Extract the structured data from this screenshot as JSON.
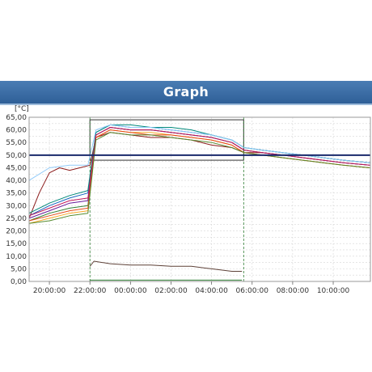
{
  "header": {
    "title": "Graph"
  },
  "chart_data": {
    "type": "line",
    "title": "",
    "unit_label": "[°C]",
    "xlabel": "",
    "ylabel": "",
    "ylim": [
      0,
      65
    ],
    "y_ticks": [
      "0,00",
      "2,50",
      "5,00",
      "7,50",
      "10,00",
      "12,50",
      "15,00",
      "17,50",
      "20,00",
      "22,50",
      "25,00",
      "27,50",
      "30,00",
      "32,50",
      "35,00",
      "37,50",
      "40,00",
      "42,50",
      "45,00",
      "47,50",
      "50,00",
      "52,50",
      "55,00",
      "57,50",
      "60,00",
      "62,50",
      "65,00"
    ],
    "x_time_range": [
      "19:00",
      "11:50"
    ],
    "x_ticks": [
      "20:00:00",
      "22:00:00",
      "00:00:00",
      "02:00:00",
      "04:00:00",
      "06:00:00",
      "08:00:00",
      "10:00:00"
    ],
    "grid": true,
    "reference_line": {
      "value": 50,
      "color": "#1a2a6c"
    },
    "time_markers": [
      "22:00",
      "05:35"
    ],
    "hold_window": {
      "start": "22:00",
      "end": "05:35",
      "ymin": 48,
      "ymax": 64,
      "color": "#333333"
    },
    "series": [
      {
        "color": "#8b1a1a",
        "values": [
          [
            19.0,
            25
          ],
          [
            19.5,
            35
          ],
          [
            20.0,
            43
          ],
          [
            20.5,
            45
          ],
          [
            21.0,
            44
          ],
          [
            21.5,
            45
          ],
          [
            22.0,
            46
          ],
          [
            22.3,
            57
          ],
          [
            23.0,
            59
          ],
          [
            0.0,
            58
          ],
          [
            1.0,
            57
          ],
          [
            2.0,
            57
          ],
          [
            3.0,
            56
          ],
          [
            4.0,
            54
          ],
          [
            5.0,
            53
          ],
          [
            5.6,
            51
          ],
          [
            6.5,
            51
          ],
          [
            7.5,
            50
          ],
          [
            8.5,
            50
          ],
          [
            9.5,
            49
          ],
          [
            10.5,
            48
          ],
          [
            11.8,
            47
          ]
        ]
      },
      {
        "color": "#2e7d32",
        "values": [
          [
            19.0,
            24
          ],
          [
            20.0,
            27
          ],
          [
            21.0,
            29
          ],
          [
            21.9,
            30
          ],
          [
            22.3,
            58
          ],
          [
            23.0,
            61
          ],
          [
            0.0,
            60
          ],
          [
            1.0,
            60
          ],
          [
            2.0,
            59
          ],
          [
            3.0,
            58
          ],
          [
            4.0,
            57
          ],
          [
            5.0,
            55
          ],
          [
            5.6,
            52
          ],
          [
            6.5,
            51
          ],
          [
            7.5,
            50
          ],
          [
            8.5,
            49
          ],
          [
            9.5,
            48
          ],
          [
            10.5,
            47
          ],
          [
            11.8,
            46
          ]
        ]
      },
      {
        "color": "#1565c0",
        "values": [
          [
            19.0,
            26
          ],
          [
            20.0,
            30
          ],
          [
            21.0,
            33
          ],
          [
            21.9,
            35
          ],
          [
            22.3,
            59
          ],
          [
            23.0,
            62
          ],
          [
            0.0,
            61
          ],
          [
            1.0,
            61
          ],
          [
            2.0,
            60
          ],
          [
            3.0,
            59
          ],
          [
            4.0,
            58
          ],
          [
            5.0,
            56
          ],
          [
            5.6,
            53
          ],
          [
            6.5,
            52
          ],
          [
            7.5,
            51
          ],
          [
            8.5,
            50
          ],
          [
            9.5,
            49
          ],
          [
            10.5,
            48
          ],
          [
            11.8,
            47
          ]
        ]
      },
      {
        "color": "#f9a825",
        "values": [
          [
            19.0,
            23
          ],
          [
            20.0,
            25
          ],
          [
            21.0,
            27
          ],
          [
            21.9,
            28
          ],
          [
            22.3,
            57
          ],
          [
            23.0,
            60
          ],
          [
            0.0,
            59
          ],
          [
            1.0,
            59
          ],
          [
            2.0,
            58
          ],
          [
            3.0,
            57
          ],
          [
            4.0,
            56
          ],
          [
            5.0,
            54
          ],
          [
            5.6,
            51
          ],
          [
            6.5,
            50
          ],
          [
            7.5,
            49
          ],
          [
            8.5,
            48
          ],
          [
            9.5,
            47
          ],
          [
            10.5,
            46
          ],
          [
            11.8,
            45
          ]
        ]
      },
      {
        "color": "#6a1b9a",
        "values": [
          [
            19.0,
            25
          ],
          [
            20.0,
            28
          ],
          [
            21.0,
            31
          ],
          [
            21.9,
            32
          ],
          [
            22.3,
            58
          ],
          [
            23.0,
            61
          ],
          [
            0.0,
            60
          ],
          [
            1.0,
            60
          ],
          [
            2.0,
            59
          ],
          [
            3.0,
            58
          ],
          [
            4.0,
            57
          ],
          [
            5.0,
            55
          ],
          [
            5.6,
            52
          ],
          [
            6.5,
            51
          ],
          [
            7.5,
            50
          ],
          [
            8.5,
            49
          ],
          [
            9.5,
            48
          ],
          [
            10.5,
            47
          ],
          [
            11.8,
            46
          ]
        ]
      },
      {
        "color": "#00897b",
        "values": [
          [
            19.0,
            27
          ],
          [
            20.0,
            31
          ],
          [
            21.0,
            34
          ],
          [
            21.9,
            36
          ],
          [
            22.3,
            59
          ],
          [
            23.0,
            62
          ],
          [
            0.0,
            62
          ],
          [
            1.0,
            61
          ],
          [
            2.0,
            61
          ],
          [
            3.0,
            60
          ],
          [
            4.0,
            58
          ],
          [
            5.0,
            56
          ],
          [
            5.6,
            53
          ],
          [
            6.5,
            52
          ],
          [
            7.5,
            51
          ],
          [
            8.5,
            50
          ],
          [
            9.5,
            49
          ],
          [
            10.5,
            48
          ],
          [
            11.8,
            47
          ]
        ]
      },
      {
        "color": "#e64a19",
        "values": [
          [
            19.0,
            24
          ],
          [
            20.0,
            26
          ],
          [
            21.0,
            28
          ],
          [
            21.9,
            29
          ],
          [
            22.3,
            57
          ],
          [
            23.0,
            60
          ],
          [
            0.0,
            59
          ],
          [
            1.0,
            58
          ],
          [
            2.0,
            58
          ],
          [
            3.0,
            57
          ],
          [
            4.0,
            56
          ],
          [
            5.0,
            54
          ],
          [
            5.6,
            51
          ],
          [
            6.5,
            50
          ],
          [
            7.5,
            49
          ],
          [
            8.5,
            48
          ],
          [
            9.5,
            47
          ],
          [
            10.5,
            46
          ],
          [
            11.8,
            45
          ]
        ]
      },
      {
        "color": "#90caf9",
        "values": [
          [
            19.0,
            40
          ],
          [
            20.0,
            45
          ],
          [
            21.0,
            46
          ],
          [
            21.9,
            46
          ],
          [
            22.3,
            60
          ],
          [
            23.0,
            62
          ],
          [
            0.0,
            61
          ],
          [
            1.0,
            61
          ],
          [
            2.0,
            60
          ],
          [
            3.0,
            59
          ],
          [
            4.0,
            58
          ],
          [
            5.0,
            56
          ],
          [
            5.6,
            53
          ],
          [
            6.5,
            52
          ],
          [
            7.5,
            51
          ],
          [
            8.5,
            50
          ],
          [
            9.5,
            49
          ],
          [
            10.5,
            48
          ],
          [
            11.8,
            47
          ]
        ]
      },
      {
        "color": "#c2185b",
        "values": [
          [
            19.0,
            26
          ],
          [
            20.0,
            29
          ],
          [
            21.0,
            32
          ],
          [
            21.9,
            33
          ],
          [
            22.3,
            58
          ],
          [
            23.0,
            61
          ],
          [
            0.0,
            60
          ],
          [
            1.0,
            60
          ],
          [
            2.0,
            59
          ],
          [
            3.0,
            58
          ],
          [
            4.0,
            57
          ],
          [
            5.0,
            55
          ],
          [
            5.6,
            52
          ],
          [
            6.5,
            51
          ],
          [
            7.5,
            50
          ],
          [
            8.5,
            49
          ],
          [
            9.5,
            48
          ],
          [
            10.5,
            47
          ],
          [
            11.8,
            46
          ]
        ]
      },
      {
        "color": "#558b2f",
        "values": [
          [
            19.0,
            23
          ],
          [
            20.0,
            24
          ],
          [
            21.0,
            26
          ],
          [
            21.9,
            27
          ],
          [
            22.3,
            56
          ],
          [
            23.0,
            59
          ],
          [
            0.0,
            58
          ],
          [
            1.0,
            58
          ],
          [
            2.0,
            57
          ],
          [
            3.0,
            56
          ],
          [
            4.0,
            55
          ],
          [
            5.0,
            53
          ],
          [
            5.6,
            51
          ],
          [
            6.5,
            50
          ],
          [
            7.5,
            49
          ],
          [
            8.5,
            48
          ],
          [
            9.5,
            47
          ],
          [
            10.5,
            46
          ],
          [
            11.8,
            45
          ]
        ]
      },
      {
        "color": "#5d4037",
        "values": [
          [
            22.0,
            6
          ],
          [
            22.2,
            8
          ],
          [
            23.0,
            7
          ],
          [
            0.0,
            6.5
          ],
          [
            1.0,
            6.5
          ],
          [
            2.0,
            6
          ],
          [
            3.0,
            6
          ],
          [
            4.0,
            5
          ],
          [
            5.0,
            4
          ],
          [
            5.5,
            4
          ]
        ]
      },
      {
        "color": "#2e7d32",
        "values": [
          [
            22.0,
            0.5
          ],
          [
            23.0,
            0.5
          ],
          [
            1.0,
            0.5
          ],
          [
            3.0,
            0.5
          ],
          [
            5.5,
            0.5
          ]
        ]
      }
    ]
  }
}
